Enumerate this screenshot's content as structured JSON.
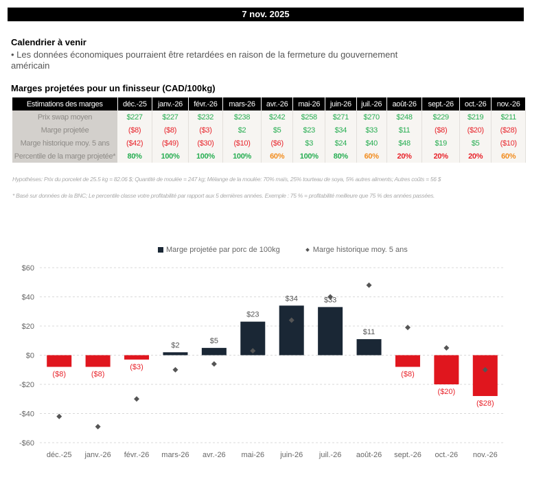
{
  "header": {
    "date": "7 nov. 2025"
  },
  "calendar": {
    "title": "Calendrier à venir",
    "bullet": "• Les données économiques pourraient être retardées en raison de la fermeture du gouvernement américain"
  },
  "margins_table": {
    "title": "Marges projetées pour un finisseur (CAD/100kg)",
    "header_label": "Estimations des marges",
    "months": [
      "déc.-25",
      "janv.-26",
      "févr.-26",
      "mars-26",
      "avr.-26",
      "mai-26",
      "juin-26",
      "juil.-26",
      "août-26",
      "sept.-26",
      "oct.-26",
      "nov.-26"
    ],
    "rows": [
      {
        "label": "Prix swap moyen",
        "values": [
          "$227",
          "$227",
          "$232",
          "$238",
          "$242",
          "$258",
          "$271",
          "$270",
          "$248",
          "$229",
          "$219",
          "$211"
        ],
        "colors": [
          "g",
          "g",
          "g",
          "g",
          "g",
          "g",
          "g",
          "g",
          "g",
          "g",
          "g",
          "g"
        ]
      },
      {
        "label": "Marge projetée",
        "values": [
          "($8)",
          "($8)",
          "($3)",
          "$2",
          "$5",
          "$23",
          "$34",
          "$33",
          "$11",
          "($8)",
          "($20)",
          "($28)"
        ],
        "colors": [
          "r",
          "r",
          "r",
          "g",
          "g",
          "g",
          "g",
          "g",
          "g",
          "r",
          "r",
          "r"
        ]
      },
      {
        "label": "Marge historique moy. 5 ans",
        "values": [
          "($42)",
          "($49)",
          "($30)",
          "($10)",
          "($6)",
          "$3",
          "$24",
          "$40",
          "$48",
          "$19",
          "$5",
          "($10)"
        ],
        "colors": [
          "r",
          "r",
          "r",
          "r",
          "r",
          "g",
          "g",
          "g",
          "g",
          "g",
          "g",
          "r"
        ]
      },
      {
        "label": "Percentile de la marge projetée*",
        "values": [
          "80%",
          "100%",
          "100%",
          "100%",
          "60%",
          "100%",
          "80%",
          "60%",
          "20%",
          "20%",
          "20%",
          "60%"
        ],
        "colors": [
          "g",
          "g",
          "g",
          "g",
          "o",
          "g",
          "g",
          "o",
          "r",
          "r",
          "r",
          "o"
        ]
      }
    ],
    "hypotheses": "Hypothèses: Prix du porcelet de 25.5 kg = 82.06 $; Quantité de moulée = 247 kg; Mélange de la moulée: 70% maïs, 25% tourteau de soya, 5% autres aliments; Autres coûts = 56 $",
    "footnote": "* Basé sur données de la BNC; Le percentile classe votre profitabilité par rapport aux 5 dernières années. Exemple : 75 % = profitabilité meilleure que 75 % des années passées."
  },
  "colors": {
    "positive_bar": "#1a2735",
    "negative_bar": "#e0161e",
    "diamond": "#555555",
    "green": "#27ae52",
    "red": "#e8232a",
    "orange": "#f28c1e"
  },
  "chart_data": {
    "type": "bar",
    "title": "",
    "xlabel": "",
    "ylabel": "",
    "ylim": [
      -60,
      60
    ],
    "yticks": [
      60,
      40,
      20,
      0,
      -20,
      -40,
      -60
    ],
    "ytick_labels": [
      "$60",
      "$40",
      "$20",
      "$0",
      "-$20",
      "-$40",
      "-$60"
    ],
    "grid": true,
    "legend_position": "top-center",
    "categories": [
      "déc.-25",
      "janv.-26",
      "févr.-26",
      "mars-26",
      "avr.-26",
      "mai-26",
      "juin-26",
      "juil.-26",
      "août-26",
      "sept.-26",
      "oct.-26",
      "nov.-26"
    ],
    "series": [
      {
        "name": "Marge projetée par porc de 100kg",
        "type": "bar",
        "values": [
          -8,
          -8,
          -3,
          2,
          5,
          23,
          34,
          33,
          11,
          -8,
          -20,
          -28
        ],
        "labels": [
          "($8)",
          "($8)",
          "($3)",
          "$2",
          "$5",
          "$23",
          "$34",
          "$33",
          "$11",
          "($8)",
          "($20)",
          "($28)"
        ]
      },
      {
        "name": "Marge historique moy. 5 ans",
        "type": "scatter",
        "marker": "diamond",
        "values": [
          -42,
          -49,
          -30,
          -10,
          -6,
          3,
          24,
          40,
          48,
          19,
          5,
          -10
        ]
      }
    ]
  }
}
